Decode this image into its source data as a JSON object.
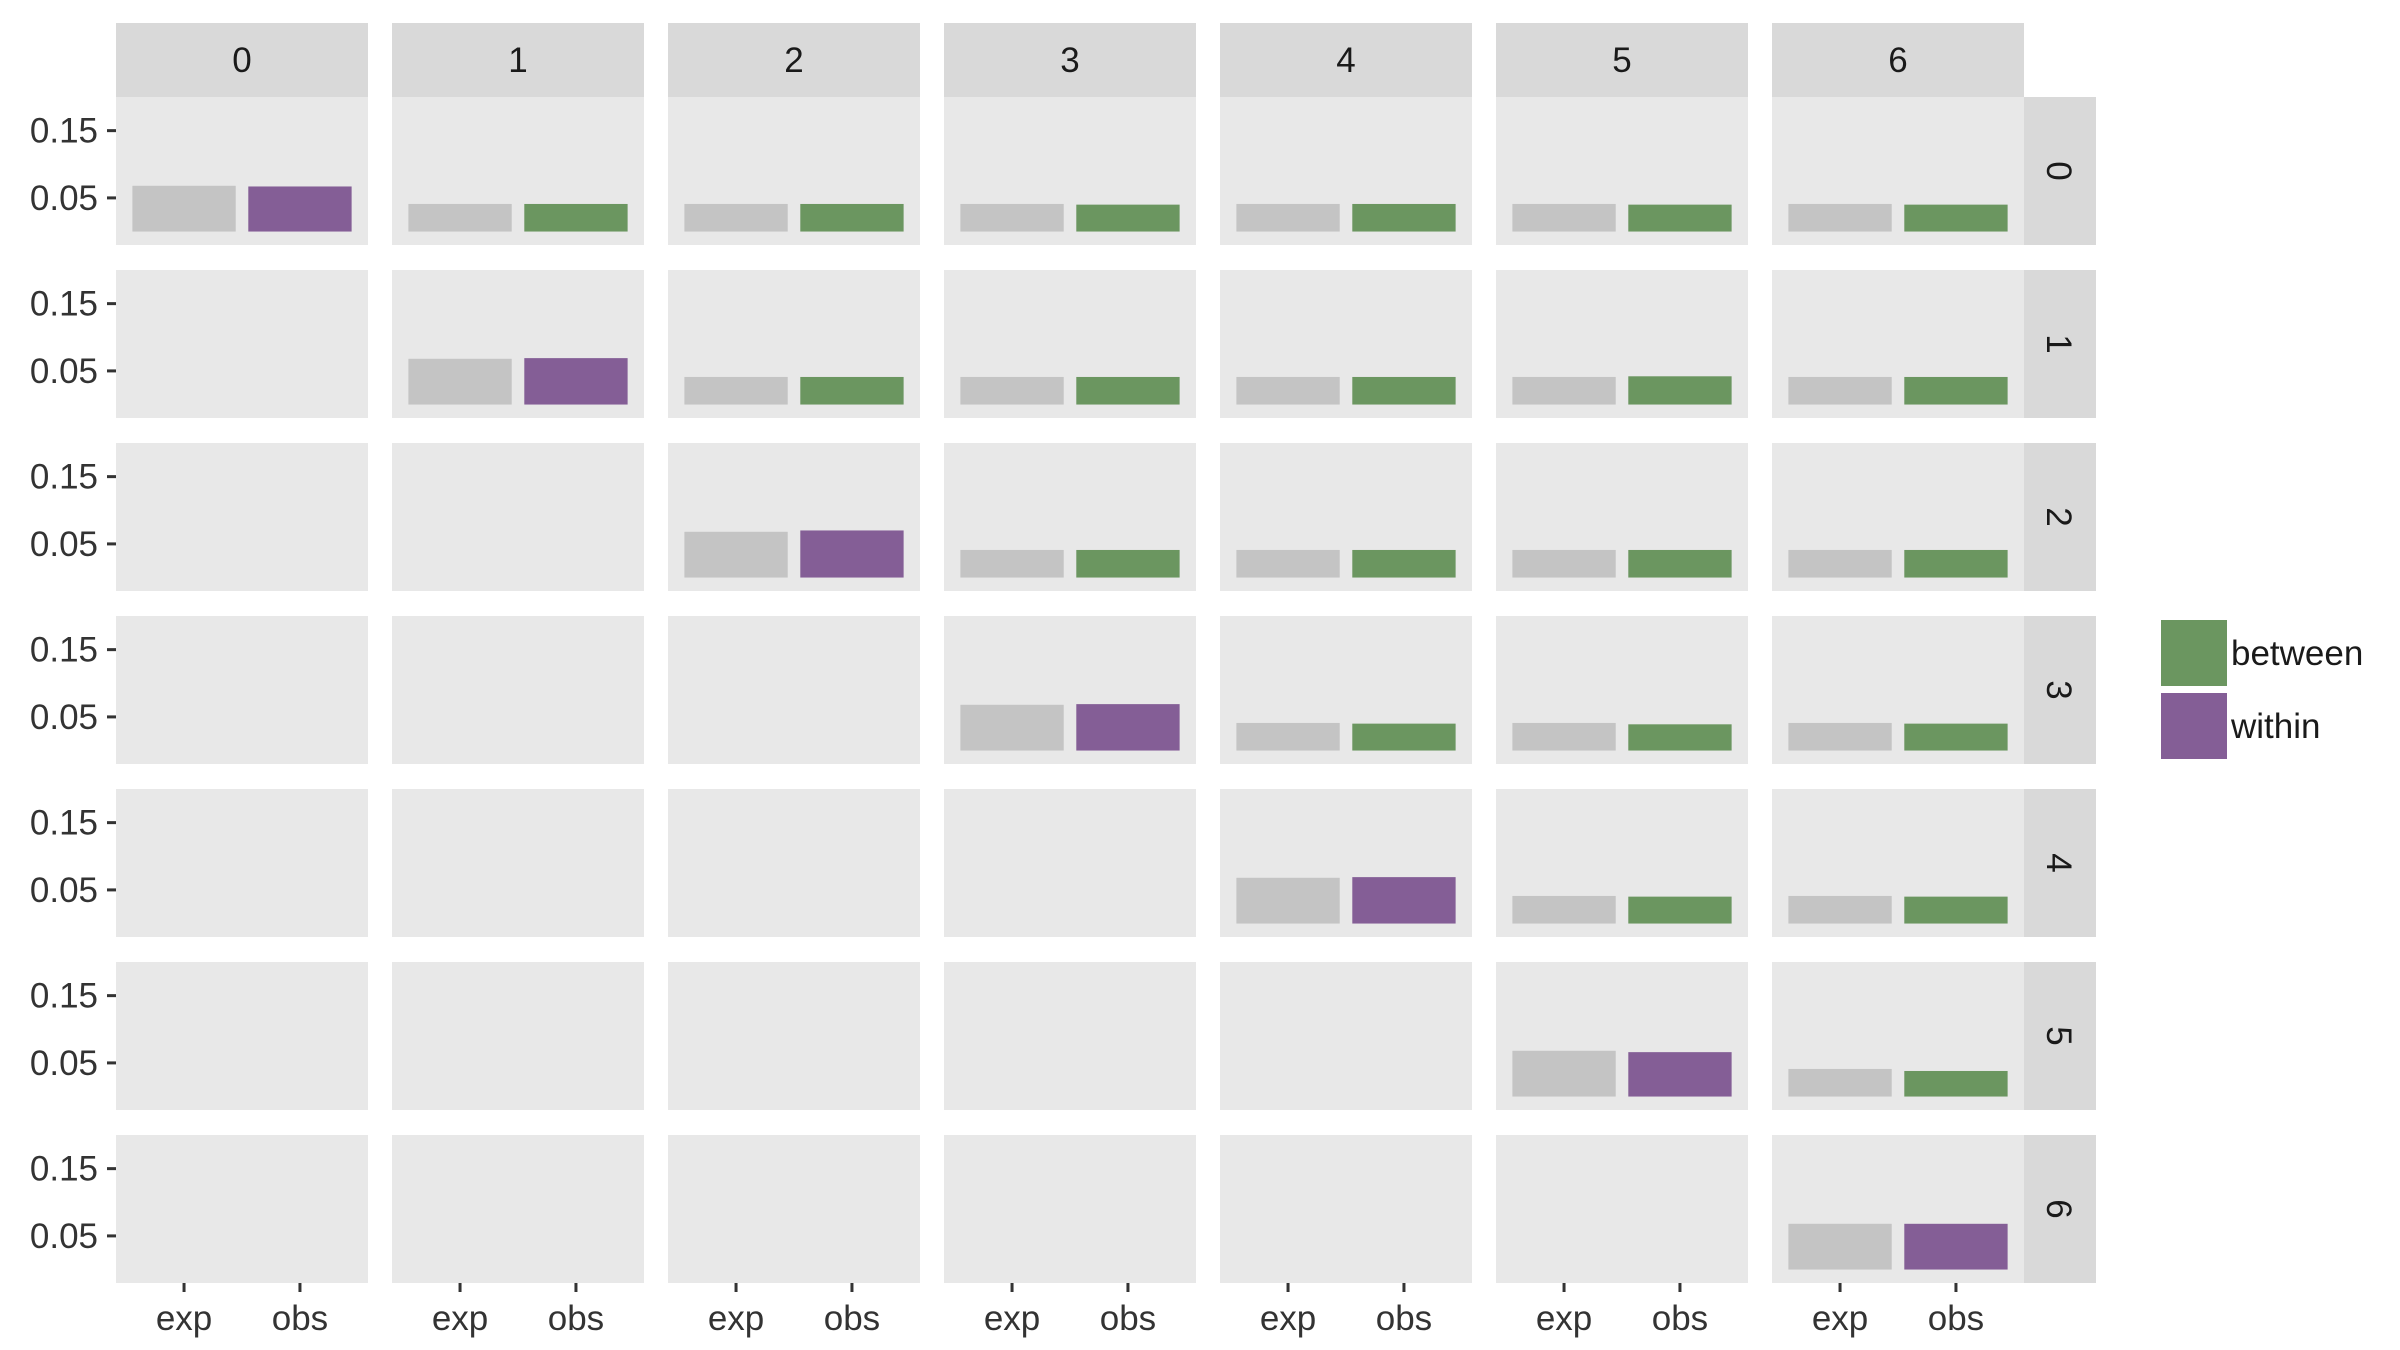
{
  "chart_data": {
    "type": "bar",
    "layout": "facet_grid",
    "col_facets": [
      "0",
      "1",
      "2",
      "3",
      "4",
      "5",
      "6"
    ],
    "row_facets": [
      "0",
      "1",
      "2",
      "3",
      "4",
      "5",
      "6"
    ],
    "categories": [
      "exp",
      "obs"
    ],
    "yticks": [
      0.05,
      0.15
    ],
    "ylim": [
      -0.02,
      0.2
    ],
    "grid": false,
    "legend": {
      "position": "right",
      "entries": [
        {
          "label": "between",
          "color": "#6b9660"
        },
        {
          "label": "within",
          "color": "#845e96"
        }
      ]
    },
    "exp_color": "#c4c4c4",
    "cells": [
      {
        "row": 0,
        "col": 0,
        "exp": 0.068,
        "obs": 0.067,
        "type": "within"
      },
      {
        "row": 0,
        "col": 1,
        "exp": 0.041,
        "obs": 0.041,
        "type": "between"
      },
      {
        "row": 0,
        "col": 2,
        "exp": 0.041,
        "obs": 0.041,
        "type": "between"
      },
      {
        "row": 0,
        "col": 3,
        "exp": 0.041,
        "obs": 0.04,
        "type": "between"
      },
      {
        "row": 0,
        "col": 4,
        "exp": 0.041,
        "obs": 0.041,
        "type": "between"
      },
      {
        "row": 0,
        "col": 5,
        "exp": 0.041,
        "obs": 0.04,
        "type": "between"
      },
      {
        "row": 0,
        "col": 6,
        "exp": 0.041,
        "obs": 0.04,
        "type": "between"
      },
      {
        "row": 1,
        "col": 1,
        "exp": 0.068,
        "obs": 0.069,
        "type": "within"
      },
      {
        "row": 1,
        "col": 2,
        "exp": 0.041,
        "obs": 0.041,
        "type": "between"
      },
      {
        "row": 1,
        "col": 3,
        "exp": 0.041,
        "obs": 0.041,
        "type": "between"
      },
      {
        "row": 1,
        "col": 4,
        "exp": 0.041,
        "obs": 0.041,
        "type": "between"
      },
      {
        "row": 1,
        "col": 5,
        "exp": 0.041,
        "obs": 0.042,
        "type": "between"
      },
      {
        "row": 1,
        "col": 6,
        "exp": 0.041,
        "obs": 0.041,
        "type": "between"
      },
      {
        "row": 2,
        "col": 2,
        "exp": 0.068,
        "obs": 0.07,
        "type": "within"
      },
      {
        "row": 2,
        "col": 3,
        "exp": 0.041,
        "obs": 0.041,
        "type": "between"
      },
      {
        "row": 2,
        "col": 4,
        "exp": 0.041,
        "obs": 0.041,
        "type": "between"
      },
      {
        "row": 2,
        "col": 5,
        "exp": 0.041,
        "obs": 0.041,
        "type": "between"
      },
      {
        "row": 2,
        "col": 6,
        "exp": 0.041,
        "obs": 0.041,
        "type": "between"
      },
      {
        "row": 3,
        "col": 3,
        "exp": 0.068,
        "obs": 0.069,
        "type": "within"
      },
      {
        "row": 3,
        "col": 4,
        "exp": 0.041,
        "obs": 0.04,
        "type": "between"
      },
      {
        "row": 3,
        "col": 5,
        "exp": 0.041,
        "obs": 0.039,
        "type": "between"
      },
      {
        "row": 3,
        "col": 6,
        "exp": 0.041,
        "obs": 0.04,
        "type": "between"
      },
      {
        "row": 4,
        "col": 4,
        "exp": 0.068,
        "obs": 0.069,
        "type": "within"
      },
      {
        "row": 4,
        "col": 5,
        "exp": 0.041,
        "obs": 0.04,
        "type": "between"
      },
      {
        "row": 4,
        "col": 6,
        "exp": 0.041,
        "obs": 0.04,
        "type": "between"
      },
      {
        "row": 5,
        "col": 5,
        "exp": 0.068,
        "obs": 0.066,
        "type": "within"
      },
      {
        "row": 5,
        "col": 6,
        "exp": 0.041,
        "obs": 0.038,
        "type": "between"
      },
      {
        "row": 6,
        "col": 6,
        "exp": 0.068,
        "obs": 0.068,
        "type": "within"
      }
    ]
  }
}
